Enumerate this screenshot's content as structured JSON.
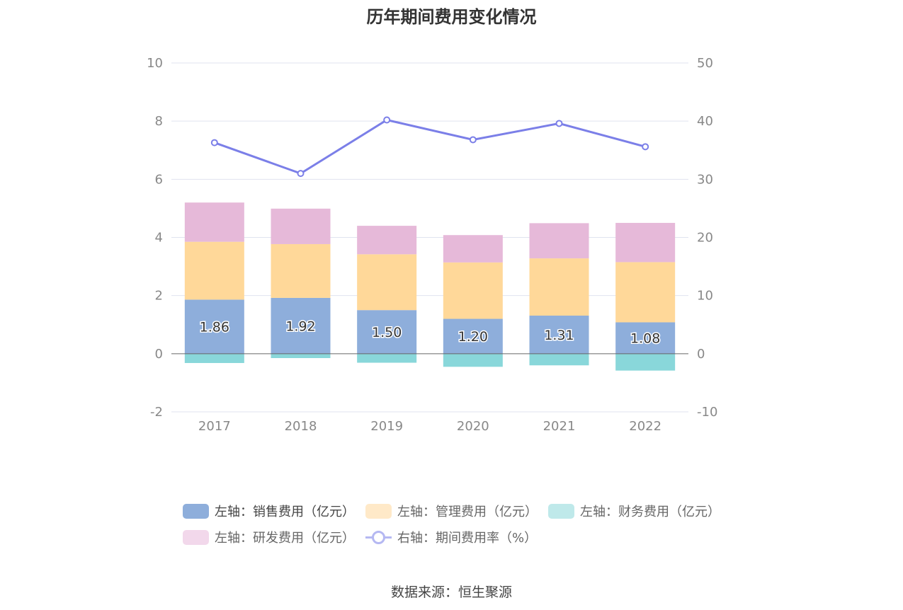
{
  "chart_data": {
    "type": "bar",
    "title": "历年期间费用变化情况",
    "categories": [
      "2017",
      "2018",
      "2019",
      "2020",
      "2021",
      "2022"
    ],
    "stacked": true,
    "left_axis": {
      "min": -2,
      "max": 10,
      "step": 2,
      "ticks": [
        "-2",
        "0",
        "2",
        "4",
        "6",
        "8",
        "10"
      ]
    },
    "right_axis": {
      "min": -10,
      "max": 50,
      "step": 10,
      "ticks": [
        "-10",
        "0",
        "10",
        "20",
        "30",
        "40",
        "50"
      ]
    },
    "series": [
      {
        "name": "左轴：销售费用（亿元）",
        "type": "bar",
        "axis": "left",
        "color": "#8eaedb",
        "values": [
          1.86,
          1.92,
          1.5,
          1.2,
          1.31,
          1.08
        ],
        "labels": [
          "1.86",
          "1.92",
          "1.50",
          "1.20",
          "1.31",
          "1.08"
        ]
      },
      {
        "name": "左轴：管理费用（亿元）",
        "type": "bar",
        "axis": "left",
        "color": "#ffd899",
        "legend_color": "#ffe9c8",
        "values": [
          1.99,
          1.85,
          1.92,
          1.94,
          1.97,
          2.07
        ]
      },
      {
        "name": "左轴：财务费用（亿元）",
        "type": "bar",
        "axis": "left",
        "color": "#89d7da",
        "legend_color": "#bfe9ea",
        "values": [
          -0.32,
          -0.15,
          -0.31,
          -0.45,
          -0.4,
          -0.58
        ]
      },
      {
        "name": "左轴：研发费用（亿元）",
        "type": "bar",
        "axis": "left",
        "color": "#e6b9d9",
        "legend_color": "#f2d8eb",
        "values": [
          1.35,
          1.22,
          0.98,
          0.94,
          1.21,
          1.35
        ]
      },
      {
        "name": "右轴：期间费用率（%）",
        "type": "line",
        "axis": "right",
        "color": "#7b7fe8",
        "legend_color": "#b5b8f2",
        "values": [
          36.3,
          31.0,
          40.2,
          36.8,
          39.6,
          35.6
        ]
      }
    ]
  },
  "source": "数据来源：恒生聚源"
}
